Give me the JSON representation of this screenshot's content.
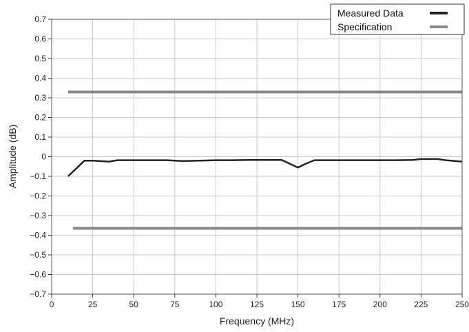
{
  "chart_data": {
    "type": "line",
    "xlabel": "Frequency (MHz)",
    "ylabel": "Amplitude (dB)",
    "xlim": [
      0,
      250
    ],
    "ylim": [
      -0.7,
      0.7
    ],
    "x_ticks": [
      0,
      25,
      50,
      75,
      100,
      125,
      150,
      175,
      200,
      225,
      250
    ],
    "y_ticks": [
      0.7,
      0.6,
      0.5,
      0.4,
      0.3,
      0.2,
      0.1,
      0,
      -0.1,
      -0.2,
      -0.3,
      -0.4,
      -0.5,
      -0.6,
      -0.7
    ],
    "y_tick_labels": [
      "0.7",
      "0.6",
      "0.5",
      "0.4",
      "0.3",
      "0.2",
      "0.1",
      "0",
      "−0.1",
      "−0.2",
      "−0.3",
      "−0.4",
      "−0.5",
      "−0.6",
      "−0.7"
    ],
    "grid": true,
    "legend_position": "top-right",
    "series": [
      {
        "name": "Measured Data",
        "color": "#222222",
        "x": [
          10,
          20,
          25,
          35,
          40,
          50,
          60,
          70,
          80,
          90,
          100,
          110,
          120,
          130,
          140,
          150,
          155,
          160,
          170,
          180,
          190,
          200,
          210,
          220,
          225,
          235,
          240,
          250
        ],
        "y": [
          -0.1,
          -0.02,
          -0.02,
          -0.025,
          -0.018,
          -0.018,
          -0.018,
          -0.018,
          -0.022,
          -0.02,
          -0.018,
          -0.018,
          -0.017,
          -0.017,
          -0.016,
          -0.055,
          -0.035,
          -0.018,
          -0.018,
          -0.018,
          -0.018,
          -0.018,
          -0.018,
          -0.017,
          -0.012,
          -0.012,
          -0.018,
          -0.025
        ]
      },
      {
        "name": "Specification",
        "color": "#888888",
        "segments": [
          {
            "x": [
              10,
              250
            ],
            "y": [
              0.33,
              0.33
            ]
          },
          {
            "x": [
              13,
              250
            ],
            "y": [
              -0.365,
              -0.365
            ]
          }
        ]
      }
    ]
  }
}
